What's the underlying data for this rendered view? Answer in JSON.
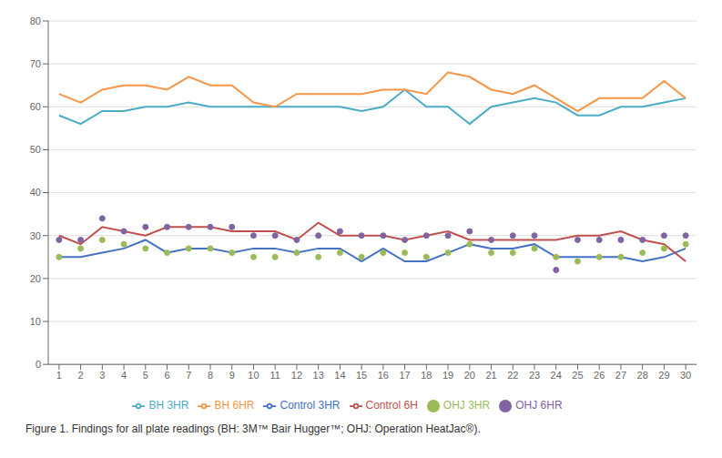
{
  "chart_data": {
    "type": "line",
    "annotations": [
      "Figure 1. Findings for all plate readings (BH: 3M™ Bair Hugger™; OHJ: Operation HeatJac®)."
    ],
    "x": [
      1,
      2,
      3,
      4,
      5,
      6,
      7,
      8,
      9,
      10,
      11,
      12,
      13,
      14,
      15,
      16,
      17,
      18,
      19,
      20,
      21,
      22,
      23,
      24,
      25,
      26,
      27,
      28,
      29,
      30
    ],
    "series": [
      {
        "name": "Control 3HR",
        "color": "#4472C4",
        "type": "line",
        "line_style": "solid",
        "marker": "none",
        "values": [
          25,
          25,
          26,
          27,
          29,
          26,
          27,
          27,
          26,
          27,
          27,
          26,
          27,
          27,
          24,
          27,
          24,
          24,
          26,
          28,
          27,
          27,
          28,
          25,
          25,
          25,
          25,
          24,
          25,
          27
        ]
      },
      {
        "name": "Control 6H",
        "color": "#C0504D",
        "type": "line",
        "line_style": "solid",
        "marker": "none",
        "values": [
          30,
          28,
          32,
          31,
          30,
          32,
          32,
          32,
          31,
          31,
          31,
          29,
          33,
          30,
          30,
          30,
          29,
          30,
          31,
          29,
          29,
          29,
          29,
          29,
          30,
          30,
          31,
          29,
          28,
          24
        ]
      },
      {
        "name": "OHJ 3HR",
        "color": "#9BBB59",
        "type": "line",
        "line_style": "none",
        "marker": "circle",
        "values": [
          25,
          27,
          29,
          28,
          27,
          26,
          27,
          27,
          26,
          25,
          25,
          26,
          25,
          26,
          25,
          26,
          26,
          25,
          26,
          28,
          26,
          26,
          27,
          25,
          24,
          25,
          25,
          26,
          27,
          28
        ]
      },
      {
        "name": "OHJ 6HR",
        "color": "#8064A2",
        "type": "line",
        "line_style": "none",
        "marker": "circle",
        "values": [
          29,
          29,
          34,
          31,
          32,
          32,
          32,
          32,
          32,
          30,
          30,
          29,
          30,
          31,
          30,
          30,
          29,
          30,
          30,
          31,
          29,
          30,
          30,
          22,
          29,
          29,
          29,
          29,
          30,
          30
        ]
      },
      {
        "name": "BH 3HR",
        "color": "#4BACC6",
        "type": "line",
        "line_style": "solid",
        "marker": "none",
        "values": [
          58,
          56,
          59,
          59,
          60,
          60,
          61,
          60,
          60,
          60,
          60,
          60,
          60,
          60,
          59,
          60,
          64,
          60,
          60,
          56,
          60,
          61,
          62,
          61,
          58,
          58,
          60,
          60,
          61,
          62
        ]
      },
      {
        "name": "BH 6HR",
        "color": "#F79646",
        "type": "line",
        "line_style": "solid",
        "marker": "none",
        "values": [
          63,
          61,
          64,
          65,
          65,
          64,
          67,
          65,
          65,
          61,
          60,
          63,
          63,
          63,
          63,
          64,
          64,
          63,
          68,
          67,
          64,
          63,
          65,
          62,
          59,
          62,
          62,
          62,
          66,
          62
        ]
      }
    ],
    "xlim": [
      0.5,
      30.5
    ],
    "xticks": [
      1,
      2,
      3,
      4,
      5,
      6,
      7,
      8,
      9,
      10,
      11,
      12,
      13,
      14,
      15,
      16,
      17,
      18,
      19,
      20,
      21,
      22,
      23,
      24,
      25,
      26,
      27,
      28,
      29,
      30
    ],
    "ylim": [
      0,
      80
    ],
    "yticks": [
      0,
      10,
      20,
      30,
      40,
      50,
      60,
      70,
      80
    ],
    "grid": true,
    "legend": "bottom"
  }
}
